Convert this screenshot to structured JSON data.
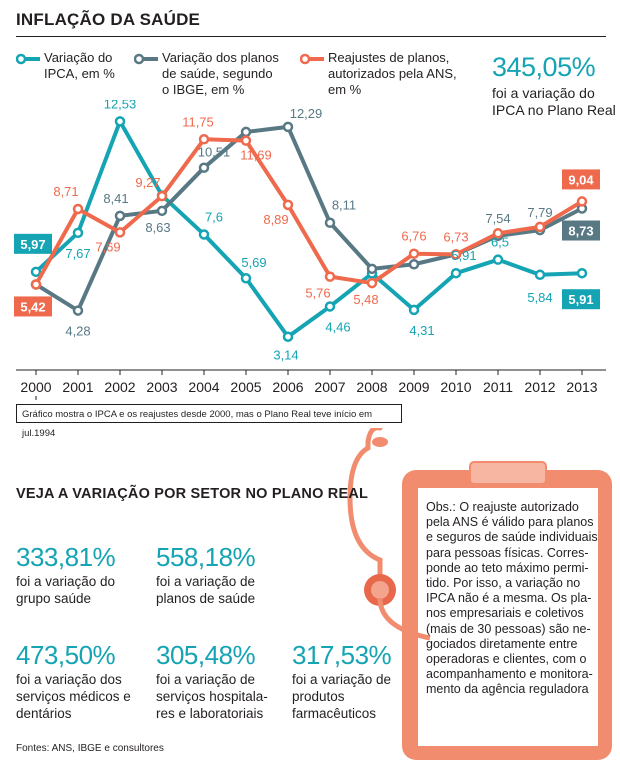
{
  "title": "INFLAÇÃO DA SAÚDE",
  "colors": {
    "ipca": "#14a4b3",
    "ibge": "#587884",
    "ans": "#ef6a4d",
    "highlight": "#14a4b3",
    "clipboard": "#f28c6f"
  },
  "legend": [
    {
      "key": "ipca",
      "lines": [
        "Variação do",
        "IPCA, em %"
      ]
    },
    {
      "key": "ibge",
      "lines": [
        "Variação dos planos",
        "de saúde, segundo",
        "o IBGE, em %"
      ]
    },
    {
      "key": "ans",
      "lines": [
        "Reajustes de planos,",
        "autorizados pela ANS,",
        "em %"
      ]
    }
  ],
  "highlight": {
    "value": "345,05%",
    "lines": [
      "foi a variação do",
      "IPCA no Plano Real"
    ]
  },
  "chart_data": {
    "type": "line",
    "x": [
      "2000",
      "2001",
      "2002",
      "2003",
      "2004",
      "2005",
      "2006",
      "2007",
      "2008",
      "2009",
      "2010",
      "2011",
      "2012",
      "2013"
    ],
    "series": [
      {
        "name": "Variação do IPCA, em %",
        "key": "ipca",
        "values": [
          5.97,
          7.67,
          12.53,
          9.3,
          7.6,
          5.69,
          3.14,
          4.46,
          5.9,
          4.31,
          5.91,
          6.5,
          5.84,
          5.91
        ],
        "labels": [
          "5,97",
          "7,67",
          "12,53",
          "",
          "7,6",
          "5,69",
          "3,14",
          "4,46",
          "",
          "4,31",
          "5,91",
          "6,5",
          "5,84",
          "5,91"
        ]
      },
      {
        "name": "Variação dos planos de saúde, segundo o IBGE, em %",
        "key": "ibge",
        "values": [
          5.42,
          4.28,
          8.41,
          8.63,
          10.51,
          12.07,
          12.29,
          8.11,
          6.1,
          6.3,
          6.73,
          7.54,
          7.79,
          8.73
        ],
        "labels": [
          "",
          "4,28",
          "8,41",
          "8,63",
          "10,51",
          "",
          "12,29",
          "8,11",
          "",
          "",
          "",
          "7,54",
          "7,79",
          "8,73"
        ]
      },
      {
        "name": "Reajustes de planos, autorizados pela ANS, em %",
        "key": "ans",
        "values": [
          5.42,
          8.71,
          7.69,
          9.27,
          11.75,
          11.69,
          8.89,
          5.76,
          5.48,
          6.76,
          6.73,
          7.65,
          7.93,
          9.04
        ],
        "labels": [
          "5,42",
          "8,71",
          "7,69",
          "9,27",
          "11,75",
          "11,69",
          "8,89",
          "5,76",
          "5,48",
          "6,76",
          "6,73",
          "",
          "",
          "9,04"
        ]
      }
    ]
  },
  "caption": "Gráfico mostra o IPCA e os reajustes desde 2000, mas o Plano Real teve início em jul.1994",
  "sector": {
    "title": "VEJA A VARIAÇÃO POR SETOR NO PLANO REAL",
    "stats": [
      {
        "value": "333,81%",
        "lines": [
          "foi a variação do",
          "grupo saúde"
        ]
      },
      {
        "value": "558,18%",
        "lines": [
          "foi a variação de",
          "planos de saúde"
        ]
      },
      {
        "value": "473,50%",
        "lines": [
          "foi a variação dos",
          "serviços médicos e",
          "dentários"
        ]
      },
      {
        "value": "305,48%",
        "lines": [
          "foi a variação de",
          "serviços hospitala-",
          "res e laboratoriais"
        ]
      },
      {
        "value": "317,53%",
        "lines": [
          "foi a variação de",
          "produtos",
          "farmacêuticos"
        ]
      }
    ]
  },
  "note": {
    "lines": [
      "Obs.: O reajuste autorizado",
      "pela ANS é válido para planos",
      "e seguros de saúde individuais",
      "para pessoas físicas. Corres-",
      "ponde ao teto máximo permi-",
      "tido. Por isso, a variação no",
      "IPCA não é a mesma. Os pla-",
      "nos empresariais e coletivos",
      "(mais de 30 pessoas) são ne-",
      "gociados diretamente entre",
      "operadoras e clientes, com o",
      "acompanhamento e monitora-",
      "mento da agência reguladora"
    ]
  },
  "sources": "Fontes: ANS, IBGE e consultores"
}
